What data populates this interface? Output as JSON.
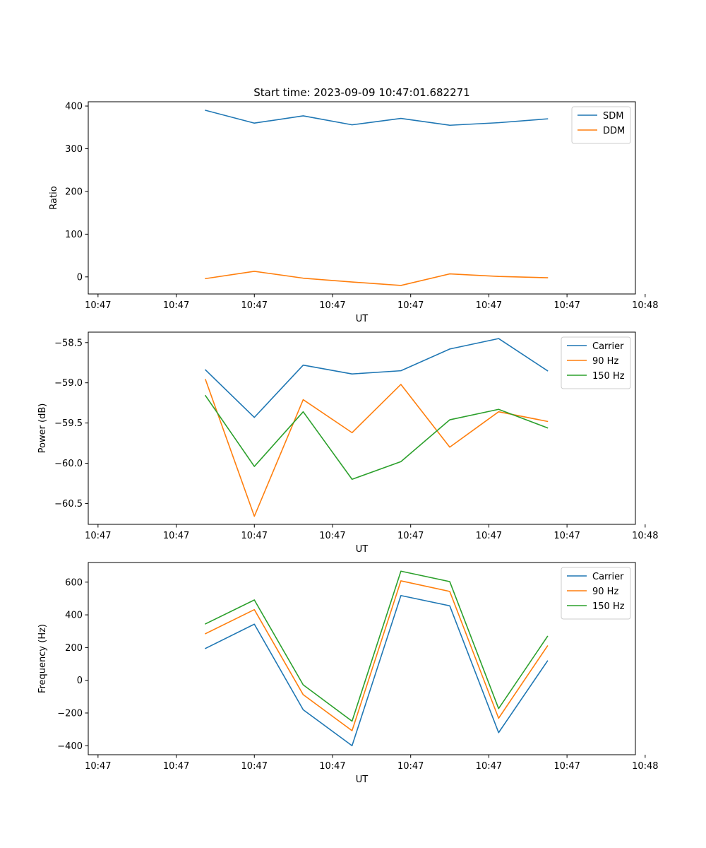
{
  "chart_data": [
    {
      "type": "line",
      "title": "Start time: 2023-09-09 10:47:01.682271",
      "xlabel": "UT",
      "ylabel": "Ratio",
      "x": [
        0.6,
        0.85,
        1.1,
        1.35,
        1.6,
        1.85,
        2.1,
        2.35
      ],
      "xlim": [
        0,
        2.8
      ],
      "x_ticks": [
        0.05,
        0.45,
        0.85,
        1.25,
        1.65,
        2.05,
        2.45,
        2.85
      ],
      "x_tick_labels": [
        "10:47",
        "10:47",
        "10:47",
        "10:47",
        "10:47",
        "10:47",
        "10:47",
        "10:48"
      ],
      "ylim": [
        -40,
        410
      ],
      "y_ticks": [
        0,
        100,
        200,
        300,
        400
      ],
      "y_tick_labels": [
        "0",
        "100",
        "200",
        "300",
        "400"
      ],
      "legend_position": "top-right",
      "series": [
        {
          "name": "SDM",
          "color": "#1f77b4",
          "values": [
            390,
            360,
            377,
            356,
            371,
            355,
            361,
            370
          ]
        },
        {
          "name": "DDM",
          "color": "#ff7f0e",
          "values": [
            -4,
            13,
            -3,
            -12,
            -20,
            7,
            1,
            -2
          ]
        }
      ]
    },
    {
      "type": "line",
      "xlabel": "UT",
      "ylabel": "Power (dB)",
      "x": [
        0.6,
        0.85,
        1.1,
        1.35,
        1.6,
        1.85,
        2.1,
        2.35
      ],
      "xlim": [
        0,
        2.8
      ],
      "x_ticks": [
        0.05,
        0.45,
        0.85,
        1.25,
        1.65,
        2.05,
        2.45,
        2.85
      ],
      "x_tick_labels": [
        "10:47",
        "10:47",
        "10:47",
        "10:47",
        "10:47",
        "10:47",
        "10:47",
        "10:48"
      ],
      "ylim": [
        -60.76,
        -58.37
      ],
      "y_ticks": [
        -60.5,
        -60.0,
        -59.5,
        -59.0,
        -58.5
      ],
      "y_tick_labels": [
        "−60.5",
        "−60.0",
        "−59.5",
        "−59.0",
        "−58.5"
      ],
      "legend_position": "top-right",
      "series": [
        {
          "name": "Carrier",
          "color": "#1f77b4",
          "values": [
            -58.84,
            -59.43,
            -58.78,
            -58.89,
            -58.85,
            -58.58,
            -58.45,
            -58.85
          ]
        },
        {
          "name": "90 Hz",
          "color": "#ff7f0e",
          "values": [
            -58.96,
            -60.66,
            -59.21,
            -59.62,
            -59.02,
            -59.8,
            -59.36,
            -59.48
          ]
        },
        {
          "name": "150 Hz",
          "color": "#2ca02c",
          "values": [
            -59.16,
            -60.04,
            -59.36,
            -60.2,
            -59.98,
            -59.46,
            -59.33,
            -59.56
          ]
        }
      ]
    },
    {
      "type": "line",
      "xlabel": "UT",
      "ylabel": "Frequency (Hz)",
      "x": [
        0.6,
        0.85,
        1.1,
        1.35,
        1.6,
        1.85,
        2.1,
        2.35
      ],
      "xlim": [
        0,
        2.8
      ],
      "x_ticks": [
        0.05,
        0.45,
        0.85,
        1.25,
        1.65,
        2.05,
        2.45,
        2.85
      ],
      "x_tick_labels": [
        "10:47",
        "10:47",
        "10:47",
        "10:47",
        "10:47",
        "10:47",
        "10:47",
        "10:48"
      ],
      "ylim": [
        -455,
        720
      ],
      "y_ticks": [
        -400,
        -200,
        0,
        200,
        400,
        600
      ],
      "y_tick_labels": [
        "−400",
        "−200",
        "0",
        "200",
        "400",
        "600"
      ],
      "legend_position": "top-right",
      "series": [
        {
          "name": "Carrier",
          "color": "#1f77b4",
          "values": [
            195,
            343,
            -180,
            -400,
            518,
            455,
            -320,
            118
          ]
        },
        {
          "name": "90 Hz",
          "color": "#ff7f0e",
          "values": [
            285,
            432,
            -88,
            -308,
            608,
            543,
            -232,
            210
          ]
        },
        {
          "name": "150 Hz",
          "color": "#2ca02c",
          "values": [
            345,
            491,
            -28,
            -250,
            667,
            603,
            -173,
            268
          ]
        }
      ]
    }
  ]
}
